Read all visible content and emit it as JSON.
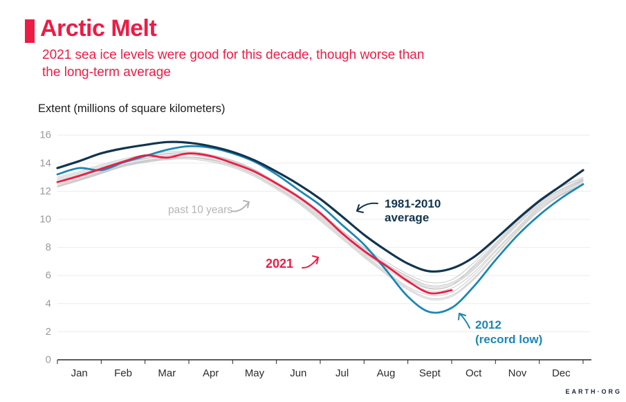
{
  "page": {
    "title": "Arctic Melt",
    "subtitle_line1": "2021 sea ice levels were good for this decade, though worse than",
    "subtitle_line2": "the long-term average",
    "watermark": "EARTH·ORG",
    "accent_red": "#ed1c45",
    "navy": "#12344e",
    "teal": "#1b87b4",
    "gray_line": "#c9c9c9",
    "gray_label": "#b5b5b5",
    "gridline_color": "#ececec",
    "axis_color": "#262626",
    "ytick_color": "#9a9a9a",
    "xtick_color": "#2b2b2b"
  },
  "chart_data": {
    "type": "line",
    "title": "Arctic Melt",
    "ylabel_title": "Extent (millions of square kilometers)",
    "xlabel": "",
    "x_unit": "month of year (0 = Jan 1, 12 = Dec 31)",
    "x_tick_labels": [
      "Jan",
      "Feb",
      "Mar",
      "Apr",
      "May",
      "Jun",
      "Jul",
      "Aug",
      "Sept",
      "Oct",
      "Nov",
      "Dec"
    ],
    "y_ticks": [
      0,
      2,
      4,
      6,
      8,
      10,
      12,
      14,
      16
    ],
    "ylim": [
      0,
      16
    ],
    "xlim": [
      0,
      12
    ],
    "grid": "horizontal-light",
    "legend_position": "inline-annotations",
    "x_grid": [
      0,
      0.5,
      1,
      1.5,
      2,
      2.5,
      3,
      3.5,
      4,
      4.5,
      5,
      5.5,
      6,
      6.5,
      7,
      7.5,
      8,
      8.5,
      9,
      9.5,
      10,
      10.5,
      11,
      11.5,
      12
    ],
    "series": [
      {
        "name": "1981-2010 average",
        "color": "#12344e",
        "width": 3.2,
        "x": [
          0,
          0.5,
          1,
          1.5,
          2,
          2.5,
          3,
          3.5,
          4,
          4.5,
          5,
          5.5,
          6,
          6.5,
          7,
          7.5,
          8,
          8.5,
          9,
          9.5,
          10,
          10.5,
          11,
          11.5,
          12
        ],
        "values": [
          13.65,
          14.15,
          14.7,
          15.05,
          15.3,
          15.5,
          15.45,
          15.2,
          14.8,
          14.2,
          13.4,
          12.5,
          11.45,
          10.2,
          8.9,
          7.8,
          6.85,
          6.3,
          6.5,
          7.3,
          8.6,
          10.0,
          11.3,
          12.4,
          13.5
        ]
      },
      {
        "name": "2012 (record low)",
        "color": "#1b87b4",
        "width": 2.8,
        "x": [
          0,
          0.5,
          1,
          1.5,
          2,
          2.5,
          3,
          3.5,
          4,
          4.5,
          5,
          5.5,
          6,
          6.5,
          7,
          7.5,
          8,
          8.5,
          9,
          9.5,
          10,
          10.5,
          11,
          11.5,
          12
        ],
        "values": [
          13.2,
          13.65,
          13.5,
          14.05,
          14.5,
          14.95,
          15.2,
          15.1,
          14.7,
          14.1,
          13.2,
          12.1,
          11.0,
          9.6,
          8.2,
          6.4,
          4.5,
          3.4,
          3.7,
          5.2,
          7.1,
          8.85,
          10.3,
          11.5,
          12.5
        ]
      },
      {
        "name": "2021",
        "color": "#ed1c45",
        "width": 2.8,
        "x": [
          0,
          0.5,
          1,
          1.5,
          2,
          2.5,
          3,
          3.5,
          4,
          4.5,
          5,
          5.5,
          6,
          6.5,
          7,
          7.5,
          8,
          8.5,
          9
        ],
        "values": [
          12.65,
          13.1,
          13.6,
          14.1,
          14.55,
          14.4,
          14.7,
          14.5,
          14.0,
          13.4,
          12.55,
          11.6,
          10.45,
          9.0,
          7.75,
          6.7,
          5.6,
          4.75,
          4.95
        ]
      }
    ],
    "past_10_years": {
      "name": "past 10 years",
      "color": "#c9c9c9",
      "width": 1,
      "x": [
        0,
        0.5,
        1,
        1.5,
        2,
        2.5,
        3,
        3.5,
        4,
        4.5,
        5,
        5.5,
        6,
        6.5,
        7,
        7.5,
        8,
        8.5,
        9,
        9.5,
        10,
        10.5,
        11,
        11.5,
        12
      ],
      "lines": [
        [
          12.35,
          12.8,
          13.3,
          13.8,
          14.1,
          14.3,
          14.4,
          14.25,
          13.9,
          13.3,
          12.4,
          11.4,
          10.2,
          8.9,
          7.6,
          6.5,
          5.5,
          4.9,
          5.1,
          6.2,
          7.8,
          9.4,
          10.9,
          11.9,
          12.7
        ],
        [
          12.6,
          13.0,
          13.5,
          14.0,
          14.3,
          14.55,
          14.6,
          14.4,
          14.0,
          13.4,
          12.5,
          11.5,
          10.3,
          9.0,
          7.8,
          6.8,
          5.9,
          5.2,
          5.4,
          6.5,
          8.1,
          9.7,
          11.1,
          12.1,
          12.8
        ],
        [
          12.9,
          13.3,
          13.8,
          14.2,
          14.5,
          14.7,
          14.75,
          14.55,
          14.15,
          13.5,
          12.6,
          11.6,
          10.4,
          9.1,
          7.7,
          6.6,
          5.7,
          5.05,
          5.3,
          6.7,
          8.3,
          9.9,
          11.3,
          12.3,
          12.9
        ],
        [
          12.5,
          12.9,
          13.4,
          13.9,
          14.2,
          14.4,
          14.45,
          14.3,
          13.85,
          13.2,
          12.3,
          11.3,
          10.1,
          8.8,
          7.5,
          6.3,
          5.2,
          4.6,
          4.8,
          6.0,
          7.7,
          9.3,
          10.8,
          11.8,
          12.6
        ],
        [
          13.0,
          13.4,
          13.9,
          14.3,
          14.6,
          14.8,
          14.85,
          14.6,
          14.2,
          13.55,
          12.65,
          11.7,
          10.5,
          9.2,
          8.0,
          7.0,
          6.1,
          5.5,
          5.7,
          6.9,
          8.5,
          10.1,
          11.4,
          12.35,
          13.0
        ],
        [
          12.4,
          12.85,
          13.35,
          13.85,
          14.15,
          14.35,
          14.4,
          14.2,
          13.8,
          13.15,
          12.25,
          11.25,
          10.0,
          8.7,
          7.4,
          6.2,
          5.1,
          4.4,
          4.6,
          5.8,
          7.5,
          9.2,
          10.7,
          11.75,
          12.5
        ],
        [
          12.7,
          13.1,
          13.6,
          14.05,
          14.35,
          14.55,
          14.6,
          14.45,
          14.05,
          13.45,
          12.55,
          11.55,
          10.35,
          9.05,
          7.85,
          6.75,
          5.8,
          5.1,
          5.3,
          6.4,
          8.0,
          9.6,
          11.0,
          12.0,
          12.75
        ],
        [
          12.3,
          12.75,
          13.25,
          13.75,
          14.05,
          14.25,
          14.3,
          14.1,
          13.7,
          13.05,
          12.15,
          11.15,
          9.9,
          8.6,
          7.3,
          6.1,
          5.0,
          4.3,
          4.5,
          5.7,
          7.4,
          9.1,
          10.6,
          11.7,
          12.45
        ],
        [
          12.8,
          13.2,
          13.7,
          14.15,
          14.45,
          14.65,
          14.7,
          14.5,
          14.1,
          13.5,
          12.6,
          11.6,
          10.45,
          9.15,
          7.95,
          6.85,
          5.95,
          5.3,
          5.5,
          6.6,
          8.2,
          9.8,
          11.2,
          12.15,
          12.85
        ]
      ]
    },
    "annotations": [
      {
        "lines": [
          "past 10 years"
        ],
        "color": "#b5b5b5",
        "target": "gray past-10-years lines"
      },
      {
        "lines": [
          "1981-2010",
          "average"
        ],
        "color": "#12344e",
        "target": "dark navy average line"
      },
      {
        "lines": [
          "2021"
        ],
        "color": "#ed1c45",
        "target": "red 2021 line"
      },
      {
        "lines": [
          "2012",
          "(record low)"
        ],
        "color": "#1b87b4",
        "target": "teal 2012 line"
      }
    ]
  }
}
